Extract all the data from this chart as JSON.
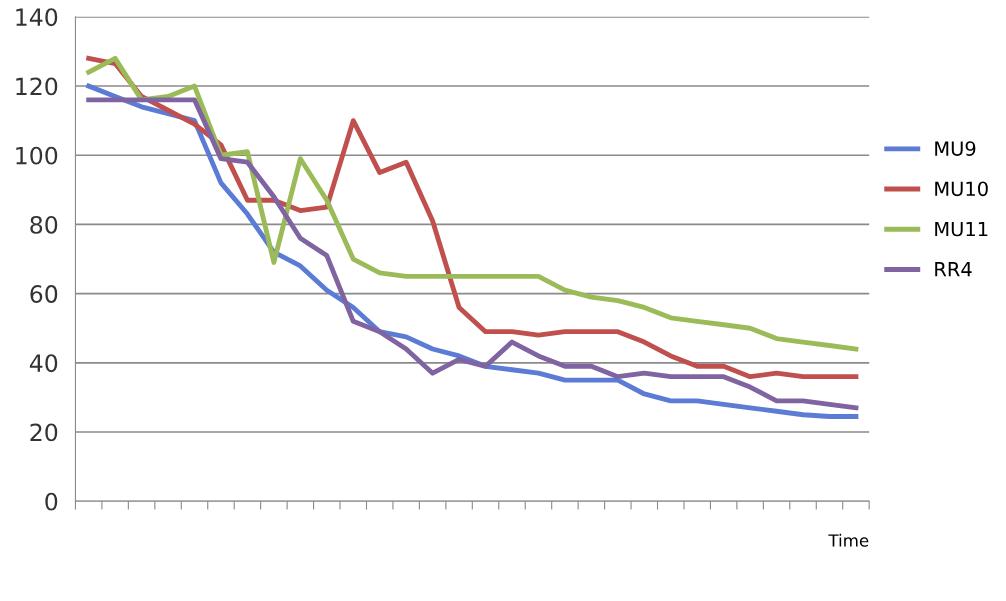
{
  "chart_data": {
    "type": "line",
    "xlabel": "Time",
    "categories": [
      null,
      null,
      null,
      null,
      null,
      null,
      null,
      null,
      null,
      null,
      null,
      null,
      null,
      null,
      null,
      null,
      null,
      null,
      null,
      null,
      null,
      null,
      null,
      null,
      null,
      null,
      null,
      null,
      null,
      null
    ],
    "series": [
      {
        "name": "MU9",
        "color": "#5b7bd5",
        "values": [
          120,
          117,
          114,
          112,
          110,
          92,
          83,
          72,
          68,
          61,
          56,
          49,
          47.5,
          44,
          42,
          39,
          38,
          37,
          35,
          35,
          35,
          31,
          29,
          29,
          28,
          27,
          26,
          25,
          24.5,
          24.5
        ]
      },
      {
        "name": "MU10",
        "color": "#c0504d",
        "values": [
          128,
          126.5,
          117,
          113,
          109,
          103,
          87,
          87,
          84,
          85,
          110,
          95,
          98,
          81,
          56,
          49,
          49,
          48,
          49,
          49,
          49,
          46,
          42,
          39,
          39,
          36,
          37,
          36,
          36,
          36
        ]
      },
      {
        "name": "MU11",
        "color": "#9bbb59",
        "values": [
          124,
          128,
          116,
          117,
          120,
          100,
          101,
          69,
          99,
          87,
          70,
          66,
          65,
          65,
          65,
          65,
          65,
          65,
          61,
          59,
          58,
          56,
          53,
          52,
          51,
          50,
          47,
          46,
          45,
          44
        ]
      },
      {
        "name": "RR4",
        "color": "#8064a2",
        "values": [
          116,
          116,
          116,
          116,
          116,
          99,
          98,
          88,
          76,
          71,
          52,
          49,
          44,
          37,
          41,
          39,
          46,
          42,
          39,
          39,
          36,
          37,
          36,
          36,
          36,
          33,
          29,
          29,
          28,
          27
        ]
      }
    ],
    "ylim": [
      0,
      140
    ],
    "yticks": [
      0,
      20,
      40,
      60,
      80,
      100,
      120,
      140
    ],
    "grid": "y",
    "legend": "right",
    "marker": "none",
    "line_style": "solid"
  }
}
